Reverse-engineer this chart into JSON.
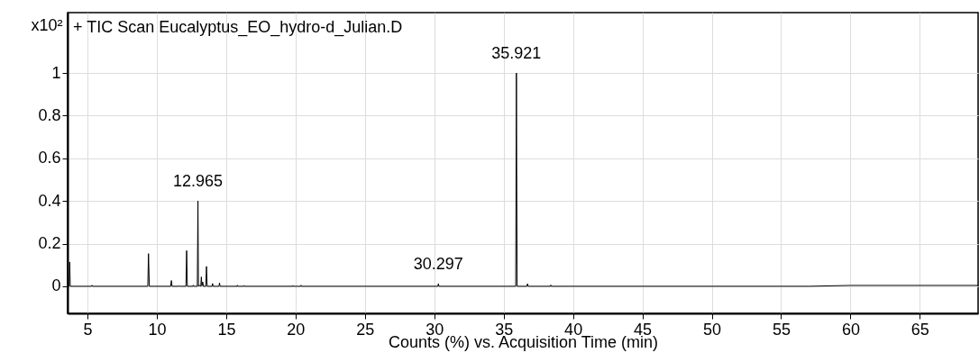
{
  "chart_data": {
    "type": "line",
    "title": "+ TIC Scan Eucalyptus_EO_hydro-d_Julian.D",
    "xlabel": "Counts (%) vs. Acquisition Time (min)",
    "ylabel": "x10²",
    "x": [
      3.6,
      3.68,
      3.72,
      3.76,
      5.3,
      5.33,
      5.37,
      9.35,
      9.4,
      9.46,
      11.0,
      11.05,
      11.1,
      11.6,
      11.62,
      11.65,
      12.1,
      12.15,
      12.2,
      12.6,
      12.63,
      12.66,
      12.92,
      12.965,
      13.0,
      13.06,
      13.17,
      13.21,
      13.25,
      13.31,
      13.36,
      13.53,
      13.58,
      13.63,
      13.98,
      14.02,
      14.06,
      14.48,
      14.52,
      14.56,
      15.78,
      15.8,
      15.83,
      16.28,
      16.3,
      16.33,
      19.78,
      19.8,
      19.83,
      20.38,
      20.4,
      20.43,
      30.26,
      30.297,
      30.33,
      35.87,
      35.921,
      35.97,
      36.68,
      36.72,
      36.76,
      38.38,
      38.4,
      38.43,
      57,
      60,
      69.2
    ],
    "series": [
      {
        "color": "#000000",
        "values": [
          0,
          0,
          0.114,
          0,
          0,
          0.005,
          0,
          0,
          0.153,
          0,
          0,
          0.027,
          0,
          0,
          0.003,
          0,
          0,
          0.167,
          0,
          0,
          0.005,
          0,
          0,
          0.4,
          0,
          0.005,
          0,
          0.044,
          0.002,
          0.02,
          0,
          0,
          0.093,
          0,
          0,
          0.013,
          0,
          0,
          0.016,
          0,
          0,
          0.005,
          0,
          0,
          0.004,
          0,
          0,
          0.004,
          0,
          0,
          0.005,
          0,
          0,
          0.012,
          0,
          0,
          1.0,
          0,
          0,
          0.012,
          0,
          0,
          0.006,
          0,
          0,
          0.004,
          0.004
        ]
      }
    ],
    "annotations": [
      {
        "text": "12.965",
        "x": 12.965,
        "y": 0.4
      },
      {
        "text": "30.297",
        "x": 30.297,
        "y": 0.012
      },
      {
        "text": "35.921",
        "x": 35.921,
        "y": 1.0
      }
    ],
    "xlim": [
      3.57,
      69.2
    ],
    "ylim": [
      -0.127,
      1.283
    ],
    "xticks": [
      5,
      10,
      15,
      20,
      25,
      30,
      35,
      40,
      45,
      50,
      55,
      60,
      65
    ],
    "yticks": [
      0,
      0.2,
      0.4,
      0.6,
      0.8,
      1
    ],
    "grid": true,
    "marker": "none",
    "line_style": "solid"
  }
}
